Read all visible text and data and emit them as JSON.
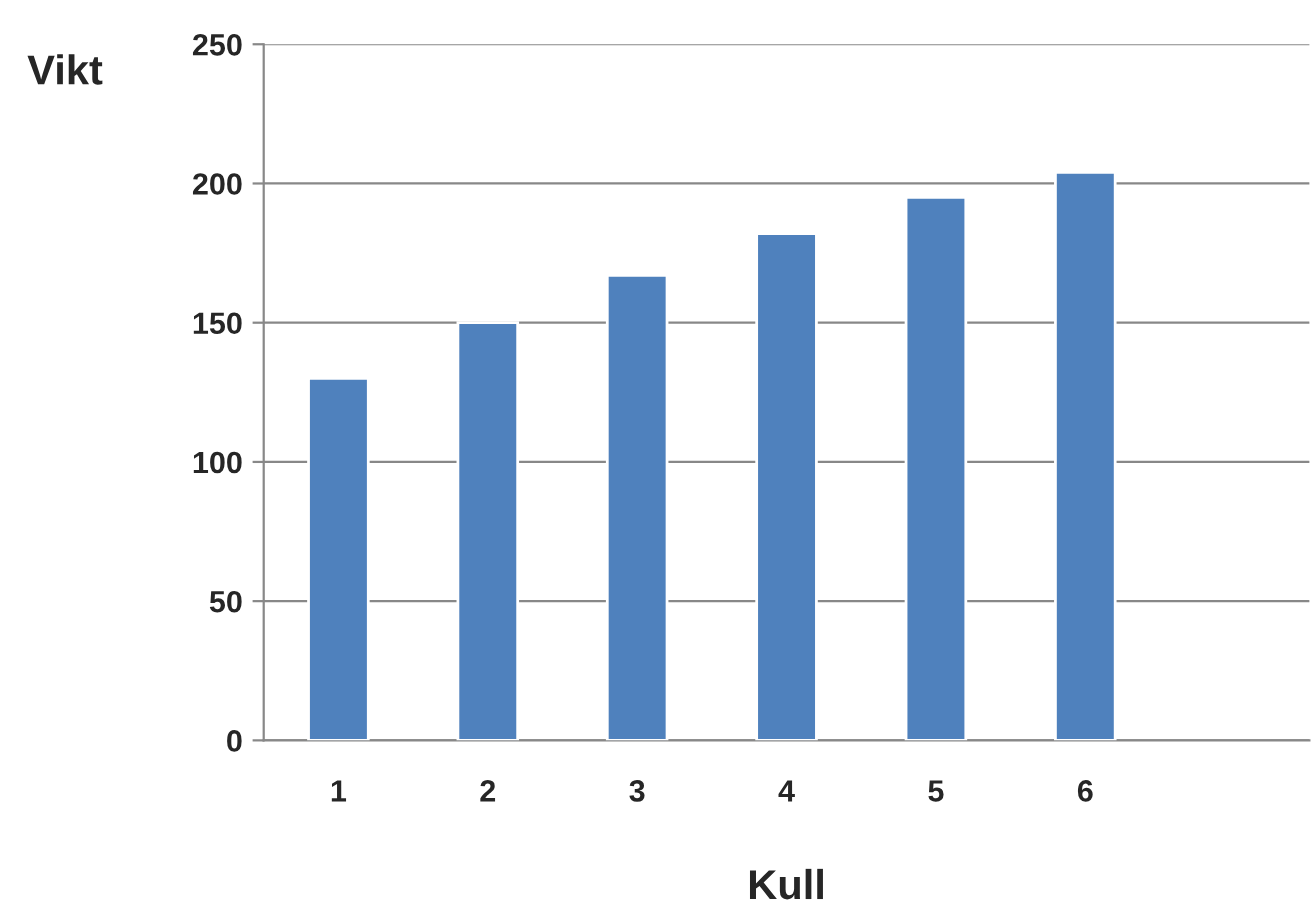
{
  "chart_data": {
    "type": "bar",
    "xlabel": "Kull",
    "ylabel": "Vikt",
    "categories": [
      "1",
      "2",
      "3",
      "4",
      "5",
      "6",
      null
    ],
    "values": [
      130,
      150,
      167,
      182,
      195,
      204,
      null
    ],
    "color": "#4f81bd",
    "ylim": [
      0,
      250
    ],
    "yticks": [
      0,
      50,
      100,
      150,
      200,
      250
    ],
    "grid": "y",
    "legend": false
  }
}
